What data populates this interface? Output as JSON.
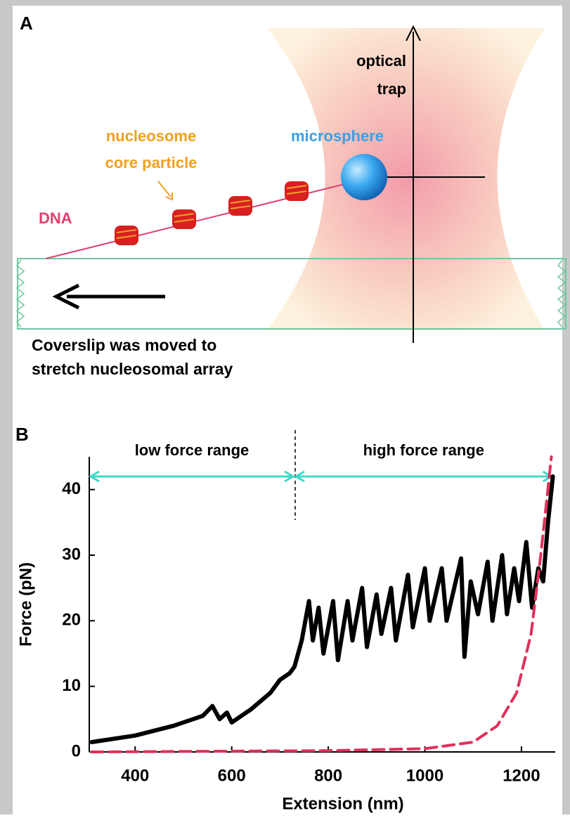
{
  "panel_a": {
    "label": "A",
    "trap": [
      "optical",
      "trap"
    ],
    "microsphere": "microsphere",
    "nucleosome": [
      "nucleosome",
      "core particle"
    ],
    "dna": "DNA",
    "caption": [
      "Coverslip was moved to",
      "stretch nucleosomal array"
    ]
  },
  "chart_data": {
    "type": "line",
    "label": "B",
    "xlabel": "Extension (nm)",
    "ylabel": "Force (pN)",
    "xlim": [
      305,
      1270
    ],
    "xticks": [
      400,
      600,
      800,
      1000,
      1200
    ],
    "ylim": [
      0,
      45
    ],
    "yticks": [
      0,
      10,
      20,
      30,
      40
    ],
    "ranges": [
      {
        "label": "low force range",
        "x": [
          305,
          730
        ],
        "y": 42,
        "color": "#40d8c8"
      },
      {
        "label": "high force range",
        "x": [
          730,
          1265
        ],
        "y": 42,
        "color": "#40d8c8"
      }
    ],
    "series": [
      {
        "color": "#000000",
        "style": "solid",
        "x": [
          310,
          400,
          480,
          540,
          560,
          575,
          590,
          600,
          640,
          680,
          700,
          720,
          730,
          745,
          760,
          768,
          780,
          790,
          810,
          820,
          840,
          850,
          870,
          880,
          900,
          910,
          930,
          940,
          965,
          975,
          1000,
          1010,
          1035,
          1045,
          1075,
          1082,
          1095,
          1110,
          1130,
          1140,
          1160,
          1170,
          1185,
          1195,
          1210,
          1222,
          1235,
          1245,
          1255,
          1265
        ],
        "values": [
          1.5,
          2.5,
          4,
          5.5,
          7,
          5,
          6,
          4.5,
          6.5,
          9,
          11,
          12,
          13,
          17,
          23,
          17,
          22,
          15,
          23,
          14,
          23,
          17,
          25,
          16,
          24,
          18,
          25,
          17,
          27,
          19,
          28,
          20,
          28,
          20,
          29.5,
          14.5,
          26,
          21,
          29,
          20,
          30,
          21,
          28,
          23,
          32,
          22,
          28,
          26,
          35,
          42
        ]
      },
      {
        "color": "#e0305a",
        "style": "dashed",
        "x": [
          310,
          800,
          1000,
          1100,
          1150,
          1190,
          1220,
          1240,
          1262
        ],
        "values": [
          0,
          0.2,
          0.5,
          1.5,
          4,
          9,
          18,
          30,
          45
        ]
      }
    ]
  }
}
